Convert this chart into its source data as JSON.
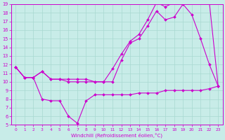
{
  "background_color": "#c8ece8",
  "grid_color": "#a8d8d0",
  "line_color": "#cc00cc",
  "xlabel": "Windchill (Refroidissement éolien,°C)",
  "xlim": [
    -0.5,
    23.5
  ],
  "ylim": [
    5,
    19
  ],
  "xticks": [
    0,
    1,
    2,
    3,
    4,
    5,
    6,
    7,
    8,
    9,
    10,
    11,
    12,
    13,
    14,
    15,
    16,
    17,
    18,
    19,
    20,
    21,
    22,
    23
  ],
  "yticks": [
    5,
    6,
    7,
    8,
    9,
    10,
    11,
    12,
    13,
    14,
    15,
    16,
    17,
    18,
    19
  ],
  "line1_x": [
    0,
    1,
    2,
    3,
    4,
    5,
    6,
    7,
    8,
    9,
    10,
    11,
    12,
    13,
    14,
    15,
    16,
    17,
    18,
    19,
    20,
    21,
    22,
    23
  ],
  "line1_y": [
    11.7,
    10.5,
    10.5,
    11.2,
    10.3,
    10.3,
    10.3,
    10.3,
    10.3,
    10.0,
    10.0,
    10.0,
    12.5,
    14.5,
    15.0,
    16.5,
    18.2,
    17.2,
    17.5,
    19.0,
    17.8,
    15.0,
    12.0,
    9.5
  ],
  "line2_x": [
    0,
    1,
    2,
    3,
    4,
    5,
    6,
    7,
    8,
    9,
    10,
    11,
    12,
    13,
    14,
    15,
    16,
    17,
    18,
    19,
    20,
    21,
    22,
    23
  ],
  "line2_y": [
    11.7,
    10.5,
    10.5,
    11.2,
    10.3,
    10.3,
    10.0,
    10.0,
    10.0,
    10.0,
    10.0,
    11.5,
    13.2,
    14.7,
    15.5,
    17.2,
    19.2,
    18.7,
    19.2,
    19.5,
    19.2,
    19.2,
    19.2,
    9.5
  ],
  "line3_x": [
    0,
    1,
    2,
    3,
    4,
    5,
    6,
    7,
    8,
    9,
    10,
    11,
    12,
    13,
    14,
    15,
    16,
    17,
    18,
    19,
    20,
    21,
    22,
    23
  ],
  "line3_y": [
    11.7,
    10.5,
    10.5,
    8.0,
    7.8,
    7.8,
    6.0,
    5.2,
    7.8,
    8.5,
    8.5,
    8.5,
    8.5,
    8.5,
    8.7,
    8.7,
    8.7,
    9.0,
    9.0,
    9.0,
    9.0,
    9.0,
    9.2,
    9.5
  ]
}
